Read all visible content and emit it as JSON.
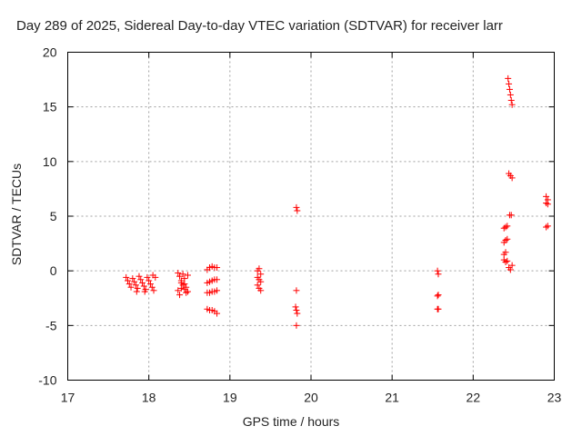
{
  "chart_data": {
    "type": "scatter",
    "title": "Day 289 of 2025, Sidereal Day-to-day VTEC variation (SDTVAR) for receiver larr",
    "xlabel": "GPS time / hours",
    "ylabel": "SDTVAR / TECUs",
    "xlim": [
      17,
      23
    ],
    "ylim": [
      -10,
      20
    ],
    "xticks": [
      "17",
      "18",
      "19",
      "20",
      "21",
      "22",
      "23"
    ],
    "yticks": [
      "-10",
      "-5",
      "0",
      "5",
      "10",
      "15",
      "20"
    ],
    "grid": true,
    "marker": "plus",
    "color": "#ff0000",
    "series": [
      {
        "name": "SDTVAR",
        "points": [
          [
            17.72,
            -0.6
          ],
          [
            17.74,
            -0.9
          ],
          [
            17.76,
            -1.2
          ],
          [
            17.78,
            -1.5
          ],
          [
            17.8,
            -0.7
          ],
          [
            17.82,
            -1.0
          ],
          [
            17.84,
            -1.3
          ],
          [
            17.86,
            -1.6
          ],
          [
            17.88,
            -0.5
          ],
          [
            17.9,
            -0.8
          ],
          [
            17.92,
            -1.1
          ],
          [
            17.94,
            -1.4
          ],
          [
            17.96,
            -1.7
          ],
          [
            17.98,
            -0.6
          ],
          [
            18.0,
            -0.9
          ],
          [
            18.02,
            -1.2
          ],
          [
            18.04,
            -1.5
          ],
          [
            18.06,
            -1.8
          ],
          [
            18.08,
            -0.6
          ],
          [
            17.85,
            -1.9
          ],
          [
            17.95,
            -1.9
          ],
          [
            18.05,
            -0.4
          ],
          [
            18.36,
            -0.2
          ],
          [
            18.38,
            -0.5
          ],
          [
            18.4,
            -0.9
          ],
          [
            18.42,
            -1.3
          ],
          [
            18.44,
            -1.7
          ],
          [
            18.46,
            -2.0
          ],
          [
            18.38,
            -2.2
          ],
          [
            18.4,
            -1.1
          ],
          [
            18.42,
            -0.3
          ],
          [
            18.44,
            -0.7
          ],
          [
            18.46,
            -1.5
          ],
          [
            18.48,
            -1.9
          ],
          [
            18.48,
            -0.4
          ],
          [
            18.36,
            -1.8
          ],
          [
            18.4,
            -1.6
          ],
          [
            18.44,
            -1.2
          ],
          [
            18.72,
            0.1
          ],
          [
            18.75,
            0.3
          ],
          [
            18.78,
            0.4
          ],
          [
            18.81,
            0.3
          ],
          [
            18.84,
            0.3
          ],
          [
            18.72,
            -1.1
          ],
          [
            18.75,
            -1.0
          ],
          [
            18.78,
            -0.9
          ],
          [
            18.81,
            -0.8
          ],
          [
            18.84,
            -0.8
          ],
          [
            18.72,
            -2.0
          ],
          [
            18.75,
            -2.0
          ],
          [
            18.78,
            -1.9
          ],
          [
            18.81,
            -1.9
          ],
          [
            18.84,
            -1.8
          ],
          [
            18.72,
            -3.5
          ],
          [
            18.75,
            -3.6
          ],
          [
            18.78,
            -3.6
          ],
          [
            18.81,
            -3.7
          ],
          [
            18.84,
            -3.9
          ],
          [
            19.34,
            0.0
          ],
          [
            19.36,
            0.2
          ],
          [
            19.38,
            -0.3
          ],
          [
            19.34,
            -0.6
          ],
          [
            19.36,
            -0.8
          ],
          [
            19.38,
            -1.0
          ],
          [
            19.34,
            -1.3
          ],
          [
            19.36,
            -1.6
          ],
          [
            19.38,
            -1.8
          ],
          [
            19.82,
            5.8
          ],
          [
            19.83,
            5.5
          ],
          [
            19.82,
            -1.8
          ],
          [
            19.81,
            -3.3
          ],
          [
            19.82,
            -3.6
          ],
          [
            19.83,
            -3.9
          ],
          [
            19.82,
            -5.0
          ],
          [
            21.56,
            0.0
          ],
          [
            21.57,
            -0.3
          ],
          [
            21.56,
            -2.3
          ],
          [
            21.57,
            -2.2
          ],
          [
            21.56,
            -3.5
          ],
          [
            21.57,
            -3.5
          ],
          [
            22.38,
            3.9
          ],
          [
            22.4,
            4.0
          ],
          [
            22.42,
            4.1
          ],
          [
            22.38,
            2.6
          ],
          [
            22.4,
            2.8
          ],
          [
            22.42,
            2.9
          ],
          [
            22.38,
            1.5
          ],
          [
            22.4,
            1.7
          ],
          [
            22.38,
            1.0
          ],
          [
            22.4,
            0.8
          ],
          [
            22.42,
            0.9
          ],
          [
            22.44,
            0.3
          ],
          [
            22.46,
            0.1
          ],
          [
            22.48,
            0.5
          ],
          [
            22.45,
            5.1
          ],
          [
            22.47,
            5.1
          ],
          [
            22.44,
            8.9
          ],
          [
            22.46,
            8.7
          ],
          [
            22.48,
            8.5
          ],
          [
            22.43,
            17.6
          ],
          [
            22.44,
            17.1
          ],
          [
            22.45,
            16.6
          ],
          [
            22.46,
            16.1
          ],
          [
            22.47,
            15.6
          ],
          [
            22.48,
            15.2
          ],
          [
            22.9,
            6.8
          ],
          [
            22.92,
            6.5
          ],
          [
            22.9,
            6.2
          ],
          [
            22.92,
            6.1
          ],
          [
            22.9,
            4.0
          ],
          [
            22.92,
            4.1
          ]
        ]
      }
    ]
  }
}
